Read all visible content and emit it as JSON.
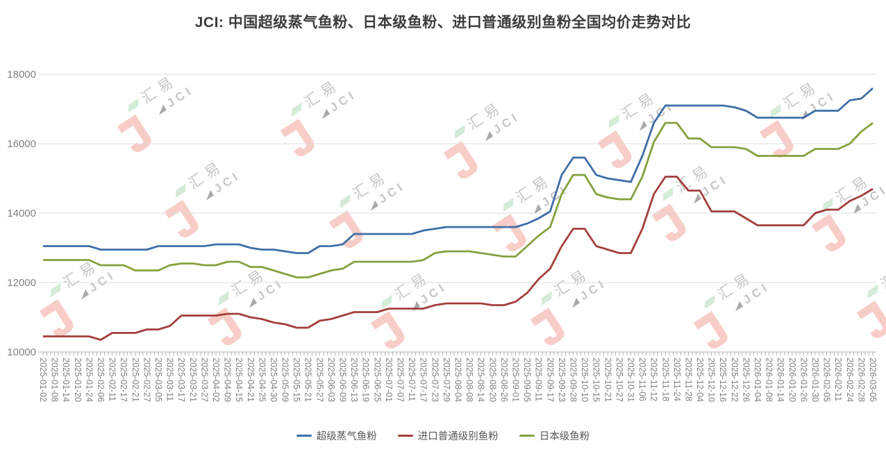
{
  "title": "JCI: 中国超级蒸气鱼粉、日本级鱼粉、进口普通级别鱼粉全国均价走势对比",
  "watermark": {
    "hanzi": "汇易",
    "latin": "JCI"
  },
  "colors": {
    "super_steam_blue": "#3e6ea6",
    "imported_ordinary_red": "#a33e3a",
    "japan_grade_green": "#85a03e",
    "gridline": "#dcdcdc",
    "axis": "#b3b3b3",
    "tick_label": "#7f7f7f",
    "watermark_pink": "#f8cdc7"
  },
  "chart_data": {
    "type": "line",
    "title": "JCI: 中国超级蒸气鱼粉、日本级鱼粉、进口普通级别鱼粉全国均价走势对比",
    "xlabel": "",
    "ylabel": "",
    "ylim": [
      10000,
      18000
    ],
    "y_ticks": [
      10000,
      12000,
      14000,
      16000,
      18000
    ],
    "grid": "horizontal",
    "legend_position": "bottom",
    "x_labels": [
      "2025-01-02",
      "2025-01-08",
      "2025-01-14",
      "2025-01-20",
      "2025-01-24",
      "2025-02-06",
      "2025-02-11",
      "2025-02-17",
      "2025-02-21",
      "2025-02-27",
      "2025-03-05",
      "2025-03-11",
      "2025-03-17",
      "2025-03-21",
      "2025-03-27",
      "2025-04-02",
      "2025-04-09",
      "2025-04-15",
      "2025-04-21",
      "2025-04-25",
      "2025-04-30",
      "2025-05-09",
      "2025-05-15",
      "2025-05-21",
      "2025-05-27",
      "2025-06-03",
      "2025-06-09",
      "2025-06-13",
      "2025-06-19",
      "2025-06-25",
      "2025-07-01",
      "2025-07-07",
      "2025-07-11",
      "2025-07-17",
      "2025-07-23",
      "2025-07-29",
      "2025-08-04",
      "2025-08-08",
      "2025-08-14",
      "2025-08-20",
      "2025-08-26",
      "2025-09-01",
      "2025-09-05",
      "2025-09-11",
      "2025-09-17",
      "2025-09-23",
      "2025-09-28",
      "2025-10-10",
      "2025-10-15",
      "2025-10-21",
      "2025-10-27",
      "2025-10-31",
      "2025-11-06",
      "2025-11-12",
      "2025-11-18",
      "2025-11-24",
      "2025-11-28",
      "2025-12-04",
      "2025-12-10",
      "2025-12-16",
      "2025-12-22",
      "2025-12-26",
      "2026-01-04",
      "2026-01-08",
      "2026-01-14",
      "2026-01-20",
      "2026-01-26",
      "2026-01-30",
      "2026-02-05",
      "2026-02-11",
      "2026-02-24",
      "2026-02-28",
      "2026-03-05"
    ],
    "series": [
      {
        "name": "超级蒸气鱼粉",
        "color": "#3e6ea6",
        "values": [
          13050,
          13050,
          13050,
          13050,
          13050,
          12950,
          12950,
          12950,
          12950,
          12950,
          13050,
          13050,
          13050,
          13050,
          13050,
          13100,
          13100,
          13100,
          13000,
          12950,
          12950,
          12900,
          12850,
          12850,
          13050,
          13050,
          13100,
          13400,
          13400,
          13400,
          13400,
          13400,
          13400,
          13500,
          13550,
          13600,
          13600,
          13600,
          13600,
          13600,
          13600,
          13600,
          13700,
          13850,
          14050,
          15100,
          15600,
          15600,
          15100,
          15000,
          14950,
          14900,
          15650,
          16600,
          17100,
          17100,
          17100,
          17100,
          17100,
          17100,
          17050,
          16950,
          16750,
          16750,
          16750,
          16750,
          16750,
          16950,
          16950,
          16950,
          17250,
          17300,
          17600
        ]
      },
      {
        "name": "进口普通级别鱼粉",
        "color": "#a33e3a",
        "values": [
          10450,
          10450,
          10450,
          10450,
          10450,
          10350,
          10550,
          10550,
          10550,
          10650,
          10650,
          10750,
          11050,
          11050,
          11050,
          11050,
          11100,
          11100,
          11000,
          10950,
          10850,
          10800,
          10700,
          10700,
          10900,
          10950,
          11050,
          11150,
          11150,
          11150,
          11250,
          11250,
          11250,
          11250,
          11350,
          11400,
          11400,
          11400,
          11400,
          11350,
          11350,
          11450,
          11700,
          12100,
          12400,
          13050,
          13550,
          13550,
          13050,
          12950,
          12850,
          12850,
          13550,
          14550,
          15050,
          15050,
          14650,
          14650,
          14050,
          14050,
          14050,
          13850,
          13650,
          13650,
          13650,
          13650,
          13650,
          14000,
          14100,
          14100,
          14350,
          14500,
          14700
        ]
      },
      {
        "name": "日本级鱼粉",
        "color": "#85a03e",
        "values": [
          12650,
          12650,
          12650,
          12650,
          12650,
          12500,
          12500,
          12500,
          12350,
          12350,
          12350,
          12500,
          12550,
          12550,
          12500,
          12500,
          12600,
          12600,
          12450,
          12450,
          12350,
          12250,
          12150,
          12150,
          12250,
          12350,
          12400,
          12600,
          12600,
          12600,
          12600,
          12600,
          12600,
          12650,
          12850,
          12900,
          12900,
          12900,
          12850,
          12800,
          12750,
          12750,
          13050,
          13350,
          13600,
          14550,
          15100,
          15100,
          14550,
          14450,
          14400,
          14400,
          15050,
          16050,
          16600,
          16600,
          16150,
          16150,
          15900,
          15900,
          15900,
          15850,
          15650,
          15650,
          15650,
          15650,
          15650,
          15850,
          15850,
          15850,
          16000,
          16350,
          16600
        ]
      }
    ]
  }
}
